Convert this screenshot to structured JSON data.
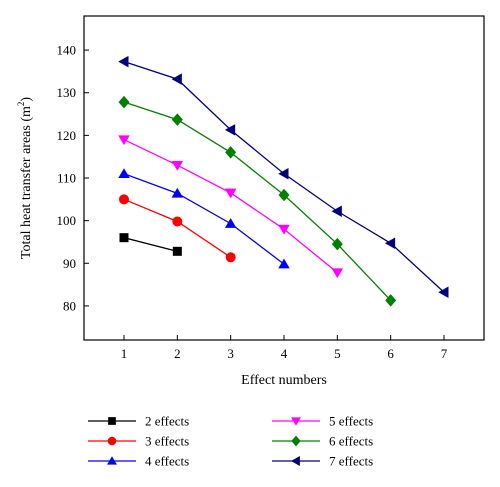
{
  "chart_data": {
    "type": "line",
    "title": "",
    "xlabel": "Effect numbers",
    "ylabel_main": "Total heat transfer areas (m",
    "ylabel_sup": "2",
    "ylabel_close": ")",
    "xlim": [
      0.25,
      7.75
    ],
    "ylim": [
      72,
      148
    ],
    "xticks": [
      1,
      2,
      3,
      4,
      5,
      6,
      7
    ],
    "yticks": [
      80,
      90,
      100,
      110,
      120,
      130,
      140
    ],
    "legend_position": "bottom",
    "series": [
      {
        "name": "2 effects",
        "color": "#000000",
        "marker": "square",
        "x": [
          1,
          2
        ],
        "y": [
          96,
          92.8
        ]
      },
      {
        "name": "3 effects",
        "color": "#ff0000",
        "marker": "circle",
        "x": [
          1,
          2,
          3
        ],
        "y": [
          105,
          99.8,
          91.4
        ]
      },
      {
        "name": "4 effects",
        "color": "#0000ff",
        "marker": "triangle-up",
        "x": [
          1,
          2,
          3,
          4
        ],
        "y": [
          111,
          106.4,
          99.3,
          89.8
        ]
      },
      {
        "name": "5 effects",
        "color": "#ff00ff",
        "marker": "triangle-down",
        "x": [
          1,
          2,
          3,
          4,
          5
        ],
        "y": [
          119,
          113,
          106.5,
          98,
          87.8
        ]
      },
      {
        "name": "6 effects",
        "color": "#008000",
        "marker": "diamond",
        "x": [
          1,
          2,
          3,
          4,
          5,
          6
        ],
        "y": [
          127.8,
          123.7,
          116,
          106,
          94.5,
          81.3
        ]
      },
      {
        "name": "7 effects",
        "color": "#000080",
        "marker": "triangle-left",
        "x": [
          1,
          2,
          3,
          4,
          5,
          6,
          7
        ],
        "y": [
          137.3,
          133.2,
          121.3,
          111,
          102.2,
          94.7,
          83.2
        ]
      }
    ]
  }
}
